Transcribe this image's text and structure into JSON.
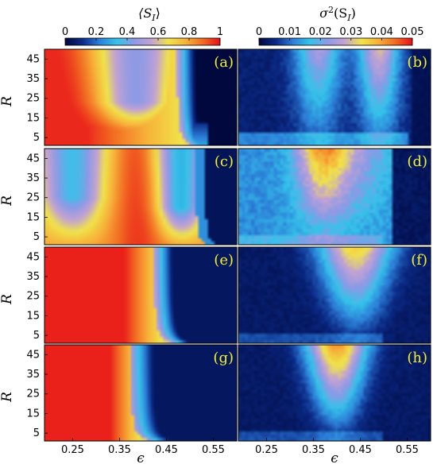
{
  "chart_data": {
    "type": "heatmap",
    "x_tick_labels": [
      "0.25",
      "0.35",
      "0.45",
      "0.55"
    ],
    "x_ticks": [
      0.25,
      0.35,
      0.45,
      0.55
    ],
    "xlim": [
      0.19,
      0.6
    ],
    "xlabel": "ϵ",
    "y_tick_labels": [
      "45",
      "35",
      "25",
      "15",
      "5"
    ],
    "y_ticks": [
      45,
      35,
      25,
      15,
      5
    ],
    "ylim": [
      1,
      50
    ],
    "ylabel": "R",
    "colormap": [
      "#00083e",
      "#0b2a86",
      "#2c7fd8",
      "#35c3ea",
      "#8c9ae6",
      "#c3a2d3",
      "#f0e44a",
      "#f7b23a",
      "#f26a22",
      "#e8101a"
    ],
    "colorbars": [
      {
        "title": "⟨S_I⟩",
        "title_display": "⟨S",
        "title_sub": "I",
        "title_close": "⟩",
        "ticks": [
          0,
          0.2,
          0.4,
          0.6,
          0.8,
          1
        ],
        "tick_labels": [
          "0",
          "0.2",
          "0.4",
          "0.6",
          "0.8",
          "1"
        ],
        "range": [
          0,
          1
        ]
      },
      {
        "title": "σ²(S_I)",
        "title_display": "σ",
        "title_sup": "2",
        "title_sub": "I",
        "ticks": [
          0,
          0.01,
          0.02,
          0.03,
          0.04,
          0.05
        ],
        "tick_labels": [
          "0",
          "0.01",
          "0.02",
          "0.03",
          "0.04",
          "0.05"
        ],
        "range": [
          0,
          0.05
        ]
      }
    ],
    "panels": [
      {
        "label": "(a)",
        "quantity": "mean",
        "row": 0,
        "col": 0
      },
      {
        "label": "(b)",
        "quantity": "variance",
        "row": 0,
        "col": 1
      },
      {
        "label": "(c)",
        "quantity": "mean",
        "row": 1,
        "col": 0
      },
      {
        "label": "(d)",
        "quantity": "variance",
        "row": 1,
        "col": 1
      },
      {
        "label": "(e)",
        "quantity": "mean",
        "row": 2,
        "col": 0
      },
      {
        "label": "(f)",
        "quantity": "variance",
        "row": 2,
        "col": 1
      },
      {
        "label": "(g)",
        "quantity": "mean",
        "row": 3,
        "col": 0
      },
      {
        "label": "(h)",
        "quantity": "variance",
        "row": 3,
        "col": 1
      }
    ]
  }
}
